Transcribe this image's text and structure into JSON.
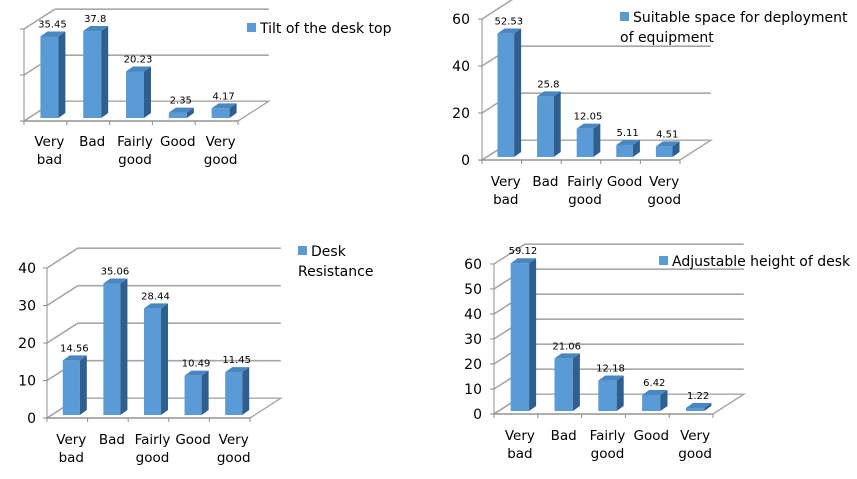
{
  "chart_data": [
    {
      "type": "bar",
      "style": "3d-column",
      "title": "",
      "legend": "Tilt of the desk top",
      "legend_position": "right",
      "categories": [
        "Very bad",
        "Bad",
        "Fairly good",
        "Good",
        "Very good"
      ],
      "values": [
        35.45,
        37.8,
        20.23,
        2.35,
        4.17
      ],
      "data_labels": [
        "35.45",
        "37.8",
        "20.23",
        "2.35",
        "4.17"
      ],
      "ylim": [
        0,
        40
      ],
      "yticks": [],
      "gridlines": [
        0,
        20,
        40
      ],
      "show_y_tick_labels": false,
      "xlabel": "",
      "ylabel": "",
      "color": "#5b9bd5"
    },
    {
      "type": "bar",
      "style": "3d-column",
      "title": "",
      "legend": "Suitable space for deployment of equipment",
      "legend_position": "top-right",
      "categories": [
        "Very bad",
        "Bad",
        "Fairly good",
        "Good",
        "Very good"
      ],
      "values": [
        52.53,
        25.8,
        12.05,
        5.11,
        4.51
      ],
      "data_labels": [
        "52.53",
        "25.8",
        "12.05",
        "5.11",
        "4.51"
      ],
      "ylim": [
        0,
        60
      ],
      "yticks": [
        "0",
        "20",
        "40",
        "60"
      ],
      "gridlines": [
        0,
        20,
        40,
        60
      ],
      "show_y_tick_labels": true,
      "xlabel": "",
      "ylabel": "",
      "color": "#5b9bd5"
    },
    {
      "type": "bar",
      "style": "3d-column",
      "title": "",
      "legend": "Desk Resistance",
      "legend_position": "right",
      "categories": [
        "Very bad",
        "Bad",
        "Fairly good",
        "Good",
        "Very good"
      ],
      "values": [
        14.56,
        35.06,
        28.44,
        10.49,
        11.45
      ],
      "data_labels": [
        "14.56",
        "35.06",
        "28.44",
        "10.49",
        "11.45"
      ],
      "ylim": [
        0,
        40
      ],
      "yticks": [
        "0",
        "10",
        "20",
        "30",
        "40"
      ],
      "gridlines": [
        0,
        10,
        20,
        30,
        40
      ],
      "show_y_tick_labels": true,
      "xlabel": "",
      "ylabel": "",
      "color": "#5b9bd5"
    },
    {
      "type": "bar",
      "style": "3d-column",
      "title": "",
      "legend": "Adjustable height of desk",
      "legend_position": "top-right",
      "categories": [
        "Very bad",
        "Bad",
        "Fairly good",
        "Good",
        "Very good"
      ],
      "values": [
        59.12,
        21.06,
        12.18,
        6.42,
        1.22
      ],
      "data_labels": [
        "59.12",
        "21.06",
        "12.18",
        "6.42",
        "1.22"
      ],
      "ylim": [
        0,
        60
      ],
      "yticks": [
        "0",
        "10",
        "20",
        "30",
        "40",
        "50",
        "60"
      ],
      "gridlines": [
        0,
        10,
        20,
        30,
        40,
        50,
        60
      ],
      "show_y_tick_labels": true,
      "xlabel": "",
      "ylabel": "",
      "color": "#5b9bd5"
    }
  ]
}
